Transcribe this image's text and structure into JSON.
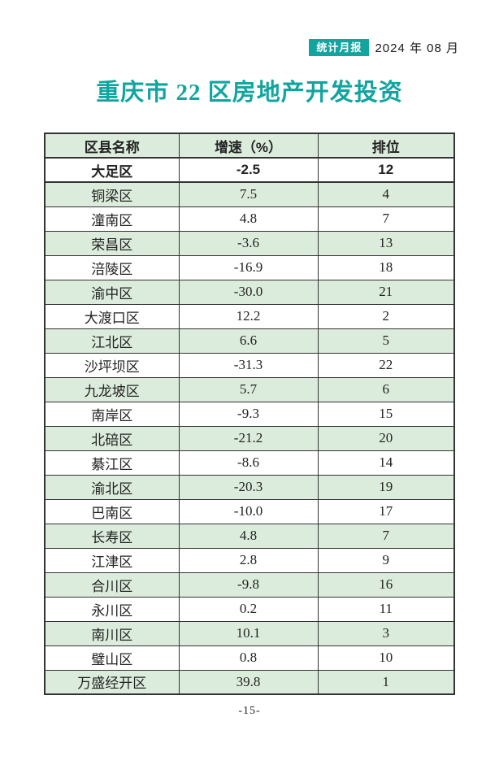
{
  "page": {
    "badge_label": "统计月报",
    "date_label": "2024 年 08 月",
    "title": "重庆市 22 区房地产开发投资",
    "page_number": "-15-"
  },
  "colors": {
    "accent_teal": "#12a5a0",
    "row_green": "#dcecdc",
    "table_border": "#333333"
  },
  "table": {
    "headers": [
      "区县名称",
      "增速（%）",
      "排位"
    ],
    "rows": [
      {
        "name": "大足区",
        "growth": "-2.5",
        "rank": "12",
        "bold": true
      },
      {
        "name": "铜梁区",
        "growth": "7.5",
        "rank": "4"
      },
      {
        "name": "潼南区",
        "growth": "4.8",
        "rank": "7"
      },
      {
        "name": "荣昌区",
        "growth": "-3.6",
        "rank": "13"
      },
      {
        "name": "涪陵区",
        "growth": "-16.9",
        "rank": "18"
      },
      {
        "name": "渝中区",
        "growth": "-30.0",
        "rank": "21"
      },
      {
        "name": "大渡口区",
        "growth": "12.2",
        "rank": "2"
      },
      {
        "name": "江北区",
        "growth": "6.6",
        "rank": "5"
      },
      {
        "name": "沙坪坝区",
        "growth": "-31.3",
        "rank": "22"
      },
      {
        "name": "九龙坡区",
        "growth": "5.7",
        "rank": "6"
      },
      {
        "name": "南岸区",
        "growth": "-9.3",
        "rank": "15"
      },
      {
        "name": "北碚区",
        "growth": "-21.2",
        "rank": "20"
      },
      {
        "name": "綦江区",
        "growth": "-8.6",
        "rank": "14"
      },
      {
        "name": "渝北区",
        "growth": "-20.3",
        "rank": "19"
      },
      {
        "name": "巴南区",
        "growth": "-10.0",
        "rank": "17"
      },
      {
        "name": "长寿区",
        "growth": "4.8",
        "rank": "7"
      },
      {
        "name": "江津区",
        "growth": "2.8",
        "rank": "9"
      },
      {
        "name": "合川区",
        "growth": "-9.8",
        "rank": "16"
      },
      {
        "name": "永川区",
        "growth": "0.2",
        "rank": "11"
      },
      {
        "name": "南川区",
        "growth": "10.1",
        "rank": "3"
      },
      {
        "name": "璧山区",
        "growth": "0.8",
        "rank": "10"
      },
      {
        "name": "万盛经开区",
        "growth": "39.8",
        "rank": "1"
      }
    ]
  }
}
